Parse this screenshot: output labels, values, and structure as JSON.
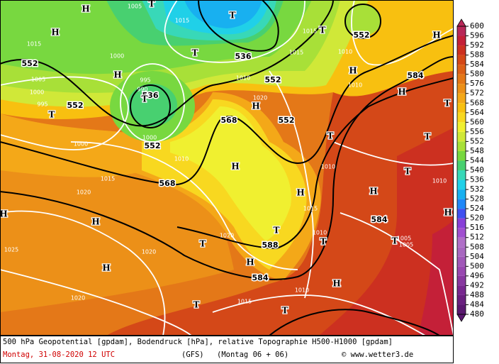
{
  "map": {
    "geopotential_labels": [
      "552",
      "552",
      "536",
      "552",
      "536",
      "552",
      "552",
      "568",
      "568",
      "552",
      "584",
      "588",
      "584",
      "584"
    ],
    "pressure_labels": [
      "1005",
      "1015",
      "1015",
      "1000",
      "1015",
      "1010",
      "995",
      "990",
      "1005",
      "1000",
      "995",
      "1010",
      "1020",
      "1010",
      "1000",
      "1000",
      "1010",
      "1015",
      "1020",
      "1010",
      "1010",
      "1015",
      "1020",
      "1020",
      "1025",
      "1010",
      "1005",
      "1005",
      "1010",
      "1020",
      "1015",
      "1015"
    ],
    "highs": [
      "H",
      "H",
      "H",
      "H",
      "H",
      "H",
      "H",
      "H",
      "H",
      "H",
      "H",
      "H",
      "H",
      "H",
      "H",
      "H"
    ],
    "lows": [
      "T",
      "T",
      "T",
      "T",
      "T",
      "T",
      "T",
      "T",
      "T",
      "T",
      "T",
      "T",
      "T",
      "T",
      "T",
      "T"
    ]
  },
  "colorbar": {
    "ticks": [
      480,
      484,
      488,
      492,
      496,
      500,
      504,
      508,
      512,
      516,
      520,
      524,
      528,
      532,
      536,
      540,
      544,
      548,
      552,
      556,
      560,
      564,
      568,
      572,
      576,
      580,
      584,
      588,
      592,
      596,
      600
    ],
    "colors": [
      "#5a1870",
      "#6a2080",
      "#782890",
      "#8838a0",
      "#9848b0",
      "#a058b8",
      "#a868c0",
      "#b070c8",
      "#a050d0",
      "#8840d8",
      "#4050f0",
      "#2088f8",
      "#18b0f0",
      "#20d0e8",
      "#38d8b8",
      "#48d070",
      "#78d840",
      "#a8e038",
      "#d0e838",
      "#f0f030",
      "#f8d820",
      "#f8c010",
      "#f4a818",
      "#ec9018",
      "#e47818",
      "#dc6018",
      "#d44818",
      "#cc3020",
      "#c42038",
      "#b82858"
    ]
  },
  "footer": {
    "description": "500 hPa Geopotential [gpdam], Bodendruck [hPa], relative Topographie H500-H1000 [gpdam]",
    "date": "Montag, 31-08-2020  12 UTC",
    "model": "(GFS)",
    "run": "(Montag 06 + 06)",
    "credit": "© www.wetter3.de"
  }
}
